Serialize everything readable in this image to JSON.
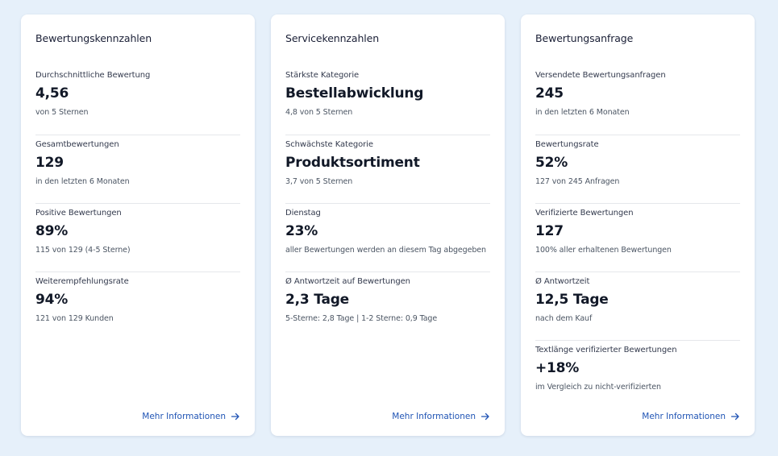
{
  "cards": [
    {
      "title": "Bewertungskennzahlen",
      "metrics": [
        {
          "label": "Durchschnittliche Bewertung",
          "value": "4,56",
          "sub": "von 5 Sternen"
        },
        {
          "label": "Gesamtbewertungen",
          "value": "129",
          "sub": "in den letzten 6 Monaten"
        },
        {
          "label": "Positive Bewertungen",
          "value": "89%",
          "sub": "115 von 129 (4-5 Sterne)"
        },
        {
          "label": "Weiterempfehlungsrate",
          "value": "94%",
          "sub": "121 von 129 Kunden"
        }
      ],
      "link": "Mehr Informationen"
    },
    {
      "title": "Servicekennzahlen",
      "metrics": [
        {
          "label": "Stärkste Kategorie",
          "value": "Bestellabwicklung",
          "sub": "4,8 von 5 Sternen"
        },
        {
          "label": "Schwächste Kategorie",
          "value": "Produktsortiment",
          "sub": "3,7 von 5 Sternen"
        },
        {
          "label": "Dienstag",
          "value": "23%",
          "sub": "aller Bewertungen werden an diesem Tag abgegeben"
        },
        {
          "label": "Ø Antwortzeit auf Bewertungen",
          "value": "2,3 Tage",
          "sub": "5-Sterne: 2,8 Tage | 1-2 Sterne: 0,9 Tage"
        }
      ],
      "link": "Mehr Informationen"
    },
    {
      "title": "Bewertungsanfrage",
      "metrics": [
        {
          "label": "Versendete Bewertungsanfragen",
          "value": "245",
          "sub": "in den letzten 6 Monaten"
        },
        {
          "label": "Bewertungsrate",
          "value": "52%",
          "sub": "127 von 245 Anfragen"
        },
        {
          "label": "Verifizierte Bewertungen",
          "value": "127",
          "sub": "100% aller erhaltenen Bewertungen"
        },
        {
          "label": "Ø Antwortzeit",
          "value": "12,5 Tage",
          "sub": "nach dem Kauf"
        },
        {
          "label": "Textlänge verifizierter Bewertungen",
          "value": "+18%",
          "sub": "im Vergleich zu nicht-verifizierten"
        }
      ],
      "link": "Mehr Informationen"
    }
  ],
  "icons": {
    "link_arrow": "arrow-right-icon"
  },
  "colors": {
    "background": "#e6f0fa",
    "card": "#ffffff",
    "link": "#2155b5"
  }
}
